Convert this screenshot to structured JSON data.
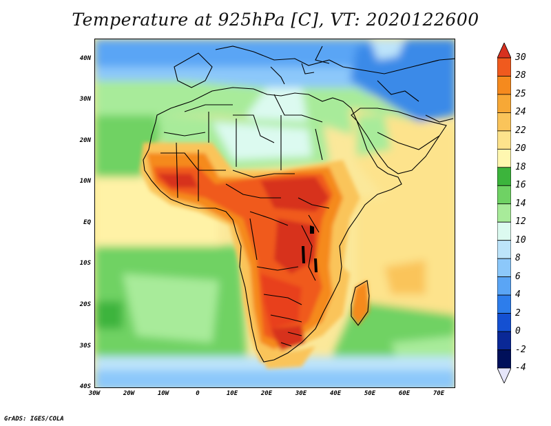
{
  "title": "Temperature at 925hPa [C], VT: 2020122600",
  "credit": "GrADS: IGES/COLA",
  "map": {
    "projection": "lat-lon",
    "lon_range": [
      -30,
      75
    ],
    "lat_range": [
      -40,
      45
    ],
    "lat_labels": [
      "40N",
      "30N",
      "20N",
      "10N",
      "EQ",
      "10S",
      "20S",
      "30S",
      "40S"
    ],
    "lon_labels": [
      "30W",
      "20W",
      "10W",
      "0",
      "10E",
      "20E",
      "30E",
      "40E",
      "50E",
      "60E",
      "70E"
    ]
  },
  "colorbar": {
    "labels": [
      "30",
      "28",
      "25",
      "24",
      "22",
      "20",
      "18",
      "16",
      "14",
      "12",
      "10",
      "8",
      "6",
      "4",
      "2",
      "0",
      "-2",
      "-4"
    ],
    "colors": [
      "#d7301f",
      "#f05a1e",
      "#f58a1e",
      "#f7a836",
      "#fac45a",
      "#fde38c",
      "#fff7b0",
      "#3cb43c",
      "#6fd264",
      "#a8eb9a",
      "#dcfaf0",
      "#bde4fa",
      "#8cc8fa",
      "#5aa5f5",
      "#2d7deb",
      "#1450d2",
      "#0a2896",
      "#00105a",
      "#e6e6fa"
    ]
  }
}
